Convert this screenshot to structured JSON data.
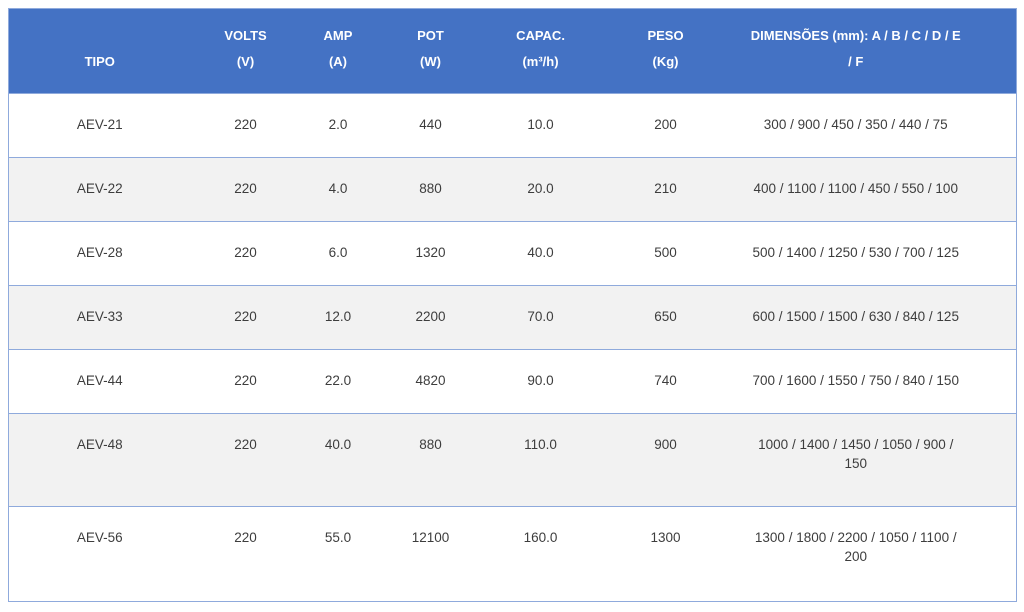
{
  "colors": {
    "header_bg": "#4472C4",
    "header_text": "#FFFFFF",
    "row_bg": "#FFFFFF",
    "row_alt_bg": "#F2F2F2",
    "border": "#8FAADC",
    "body_text": "#3D3D3D"
  },
  "table": {
    "columns": [
      {
        "line1": "TIPO",
        "line2": ""
      },
      {
        "line1": "VOLTS",
        "line2": "(V)"
      },
      {
        "line1": "AMP",
        "line2": "(A)"
      },
      {
        "line1": "POT",
        "line2": "(W)"
      },
      {
        "line1": "CAPAC.",
        "line2": "(m³/h)"
      },
      {
        "line1": "PESO",
        "line2": "(Kg)"
      },
      {
        "line1": "DIMENSÕES (mm): A / B / C / D / E",
        "line2": "/ F"
      }
    ],
    "rows": [
      {
        "tipo": "AEV-21",
        "volts": "220",
        "amp": "2.0",
        "pot": "440",
        "capac": "10.0",
        "peso": "200",
        "dim": "300 / 900 / 450 / 350 / 440 / 75"
      },
      {
        "tipo": "AEV-22",
        "volts": "220",
        "amp": "4.0",
        "pot": "880",
        "capac": "20.0",
        "peso": "210",
        "dim": "400 / 1100 / 1100 / 450 / 550 / 100"
      },
      {
        "tipo": "AEV-28",
        "volts": "220",
        "amp": "6.0",
        "pot": "1320",
        "capac": "40.0",
        "peso": "500",
        "dim": "500 / 1400 / 1250 / 530 / 700 / 125"
      },
      {
        "tipo": "AEV-33",
        "volts": "220",
        "amp": "12.0",
        "pot": "2200",
        "capac": "70.0",
        "peso": "650",
        "dim": "600 / 1500 / 1500 / 630 / 840 / 125"
      },
      {
        "tipo": "AEV-44",
        "volts": "220",
        "amp": "22.0",
        "pot": "4820",
        "capac": "90.0",
        "peso": "740",
        "dim": "700 / 1600 / 1550 / 750 / 840 / 150"
      },
      {
        "tipo": "AEV-48",
        "volts": "220",
        "amp": "40.0",
        "pot": "880",
        "capac": "110.0",
        "peso": "900",
        "dim": "1000 / 1400 / 1450 / 1050 / 900 / 150"
      },
      {
        "tipo": "AEV-56",
        "volts": "220",
        "amp": "55.0",
        "pot": "12100",
        "capac": "160.0",
        "peso": "1300",
        "dim": "1300 / 1800 / 2200 / 1050 / 1100 / 200"
      }
    ]
  },
  "chart_data": {
    "type": "table",
    "columns": [
      "TIPO",
      "VOLTS (V)",
      "AMP (A)",
      "POT (W)",
      "CAPAC. (m³/h)",
      "PESO (Kg)",
      "DIMENSÕES (mm): A / B / C / D / E / F"
    ],
    "rows": [
      [
        "AEV-21",
        220,
        2.0,
        440,
        10.0,
        200,
        "300 / 900 / 450 / 350 / 440 / 75"
      ],
      [
        "AEV-22",
        220,
        4.0,
        880,
        20.0,
        210,
        "400 / 1100 / 1100 / 450 / 550 / 100"
      ],
      [
        "AEV-28",
        220,
        6.0,
        1320,
        40.0,
        500,
        "500 / 1400 / 1250 / 530 / 700 / 125"
      ],
      [
        "AEV-33",
        220,
        12.0,
        2200,
        70.0,
        650,
        "600 / 1500 / 1500 / 630 / 840 / 125"
      ],
      [
        "AEV-44",
        220,
        22.0,
        4820,
        90.0,
        740,
        "700 / 1600 / 1550 / 750 / 840 / 150"
      ],
      [
        "AEV-48",
        220,
        40.0,
        880,
        110.0,
        900,
        "1000 / 1400 / 1450 / 1050 / 900 / 150"
      ],
      [
        "AEV-56",
        220,
        55.0,
        12100,
        160.0,
        1300,
        "1300 / 1800 / 2200 / 1050 / 1100 / 200"
      ]
    ],
    "layout": {
      "striped_rows": true,
      "grid": "horizontal-only",
      "header_position": "top"
    }
  }
}
